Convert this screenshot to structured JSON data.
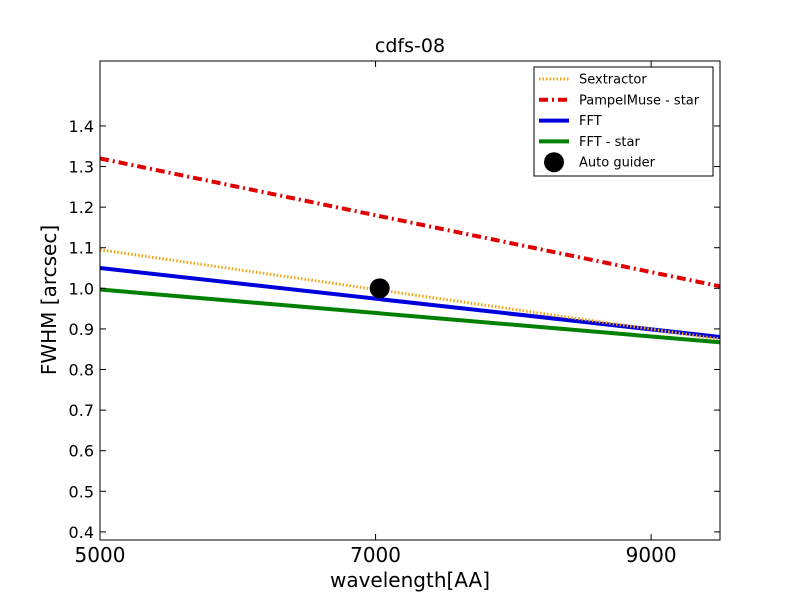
{
  "chart_data": {
    "type": "line",
    "title": "cdfs-08",
    "xlabel": "wavelength[AA]",
    "ylabel": "FWHM [arcsec]",
    "xlim": [
      5000,
      9500
    ],
    "ylim": [
      0.38,
      1.56
    ],
    "xticks": [
      5000,
      7000,
      9000
    ],
    "xtick_labels": [
      "5000",
      "7000",
      "9000"
    ],
    "yticks": [
      0.4,
      0.5,
      0.6,
      0.7,
      0.8,
      0.9,
      1.0,
      1.1,
      1.2,
      1.3,
      1.4
    ],
    "ytick_labels": [
      "0.4",
      "0.5",
      "0.6",
      "0.7",
      "0.8",
      "0.9",
      "1.0",
      "1.1",
      "1.2",
      "1.3",
      "1.4"
    ],
    "grid": false,
    "legend_position": "top-right",
    "series": [
      {
        "name": "Sextractor",
        "style": "dotted",
        "color": "#f0a30a",
        "x": [
          5000,
          9500
        ],
        "y": [
          1.095,
          0.875
        ]
      },
      {
        "name": "PampelMuse - star",
        "style": "dashdot",
        "color": "#e00000",
        "x": [
          5000,
          9500
        ],
        "y": [
          1.32,
          1.005
        ]
      },
      {
        "name": "FFT",
        "style": "solid",
        "color": "#0000dd",
        "x": [
          5000,
          9500
        ],
        "y": [
          1.05,
          0.88
        ]
      },
      {
        "name": "FFT - star",
        "style": "solid",
        "color": "#008000",
        "x": [
          5000,
          9500
        ],
        "y": [
          0.997,
          0.867
        ]
      },
      {
        "name": "Auto guider",
        "style": "marker",
        "color": "#000000",
        "x": [
          7030
        ],
        "y": [
          1.0
        ]
      }
    ]
  }
}
